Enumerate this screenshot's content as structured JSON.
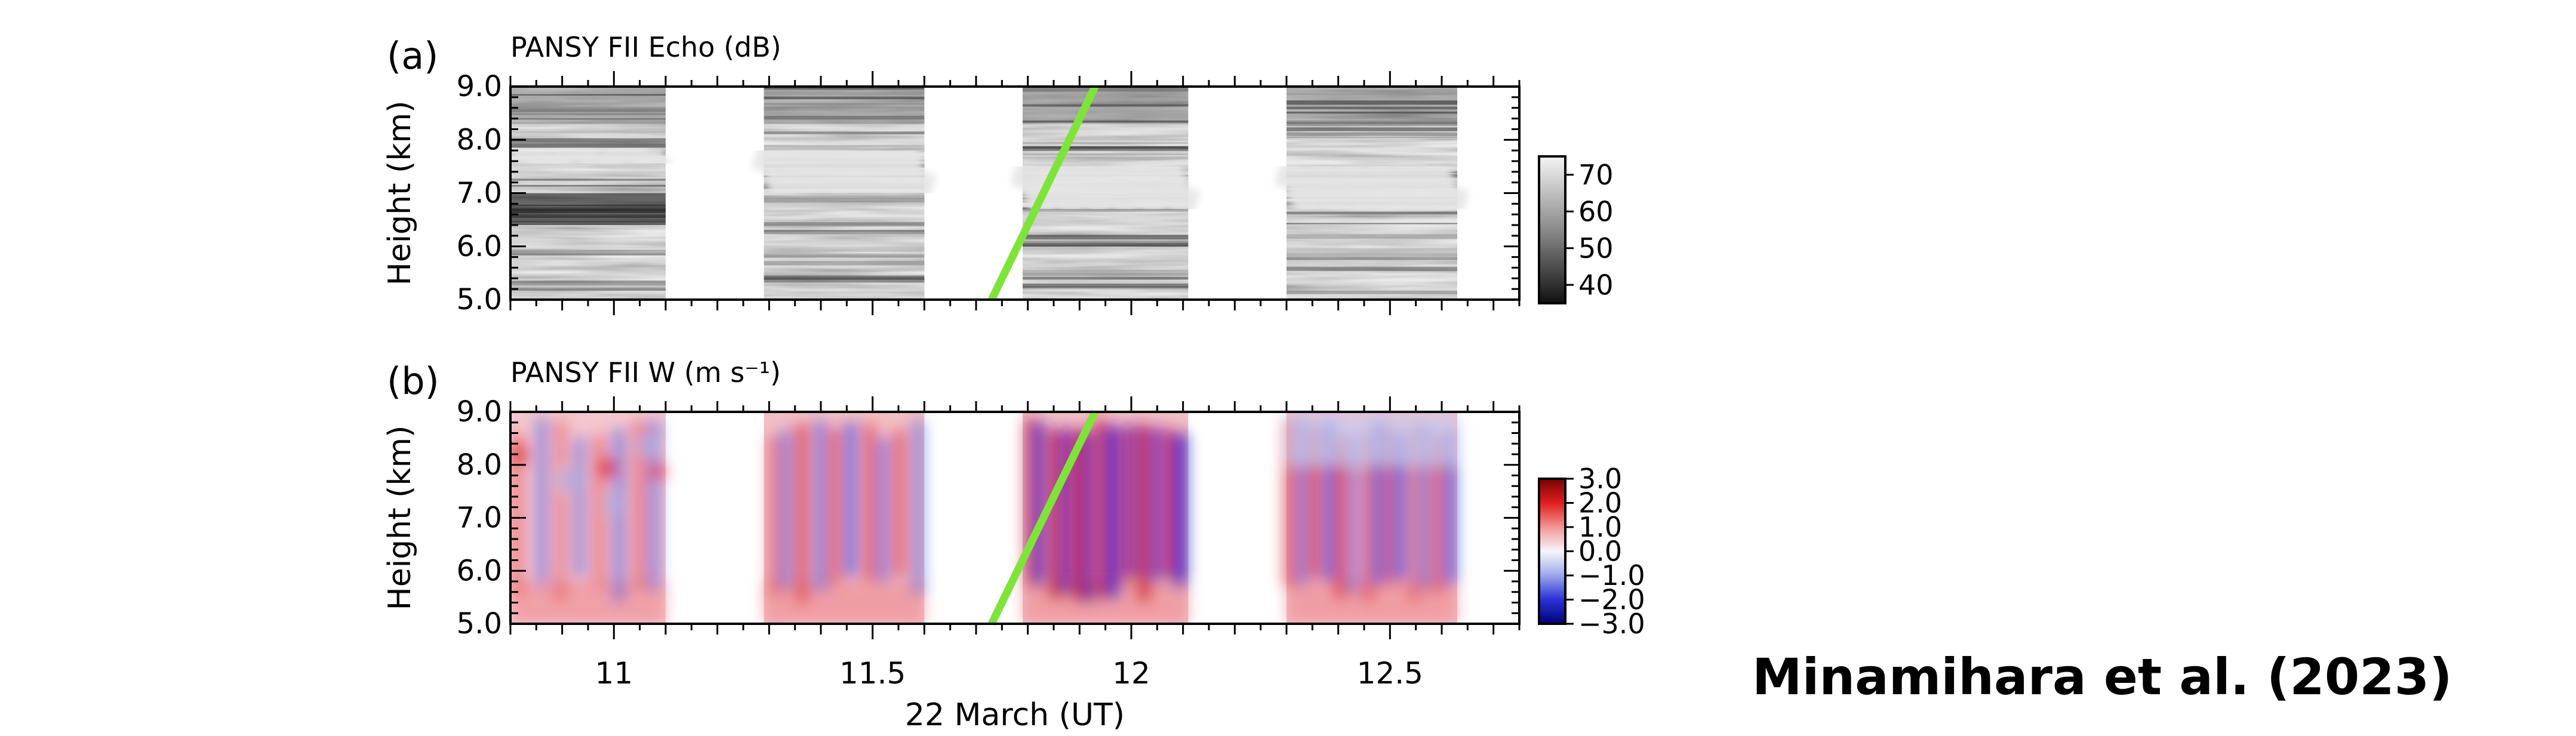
{
  "citation": "Minamihara et al. (2023)",
  "chart_data": [
    {
      "type": "heatmap",
      "panel_label": "(a)",
      "title": "PANSY FII Echo (dB)",
      "ylabel": "Height (km)",
      "y_ticks": [
        "5.0",
        "6.0",
        "7.0",
        "8.0",
        "9.0"
      ],
      "ylim": [
        5.0,
        9.0
      ],
      "xlim": [
        10.8,
        12.75
      ],
      "x_tick_labels": [],
      "colorbar": {
        "ticks": [
          "70",
          "60",
          "50",
          "40"
        ],
        "range": [
          35,
          75
        ],
        "colormap": "gray"
      },
      "data_segments": [
        [
          10.8,
          11.1
        ],
        [
          11.29,
          11.6
        ],
        [
          11.79,
          12.11
        ],
        [
          12.3,
          12.63
        ]
      ],
      "reference_line": {
        "color": "#7fe43a",
        "x": [
          11.73,
          11.93
        ],
        "y": [
          5.0,
          9.0
        ]
      }
    },
    {
      "type": "heatmap",
      "panel_label": "(b)",
      "title": "PANSY FII W (m s⁻¹)",
      "ylabel": "Height (km)",
      "xlabel": "22 March (UT)",
      "y_ticks": [
        "5.0",
        "6.0",
        "7.0",
        "8.0",
        "9.0"
      ],
      "ylim": [
        5.0,
        9.0
      ],
      "xlim": [
        10.8,
        12.75
      ],
      "x_tick_labels": [
        "11",
        "11.5",
        "12",
        "12.5"
      ],
      "x_tick_values": [
        11.0,
        11.5,
        12.0,
        12.5
      ],
      "colorbar": {
        "ticks": [
          "3.0",
          "2.0",
          "1.0",
          "0.0",
          "−1.0",
          "−2.0",
          "−3.0"
        ],
        "range": [
          -3.0,
          3.0
        ],
        "colormap": "blue-white-red"
      },
      "data_segments": [
        [
          10.8,
          11.1
        ],
        [
          11.29,
          11.6
        ],
        [
          11.79,
          12.11
        ],
        [
          12.3,
          12.63
        ]
      ],
      "reference_line": {
        "color": "#7fe43a",
        "x": [
          11.73,
          11.93
        ],
        "y": [
          5.0,
          9.0
        ]
      }
    }
  ]
}
